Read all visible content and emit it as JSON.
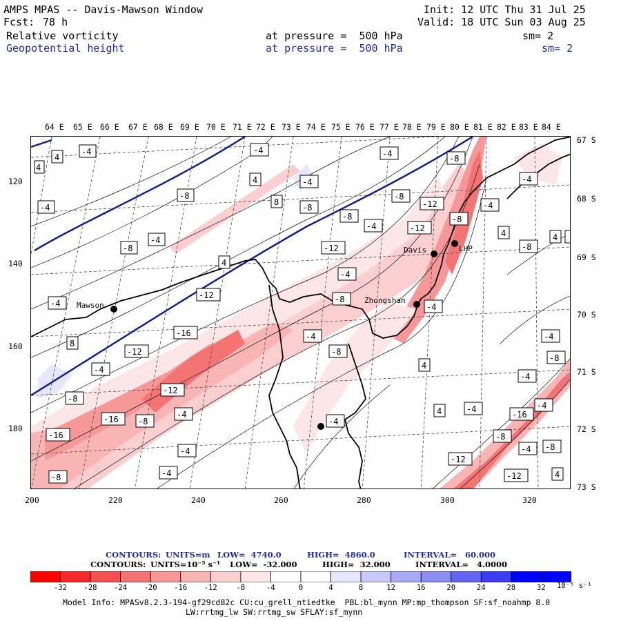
{
  "header": {
    "title": "AMPS MPAS -- Davis-Mawson Window",
    "forecast_label": "Fcst:",
    "forecast_hours": "78 h",
    "init": "Init: 12 UTC Thu 31 Jul 25",
    "valid": "Valid: 18 UTC Sun 03 Aug 25",
    "field1": "Relative vorticity",
    "field1_pressure": "at pressure =  500 hPa",
    "field1_sm": "sm= 2",
    "field2": "Geopotential height",
    "field2_pressure": "at pressure =  500 hPa",
    "field2_sm": "sm= 2"
  },
  "map": {
    "lon_labels": [
      "64 E",
      "65 E",
      "66 E",
      "67 E",
      "68 E",
      "69 E",
      "70 E",
      "71 E",
      "72 E",
      "73 E",
      "74 E",
      "75 E",
      "76 E",
      "77 E",
      "78 E",
      "79 E",
      "80 E",
      "81 E",
      "82 E",
      "83 E",
      "84 E"
    ],
    "lat_labels": [
      "67 S",
      "68 S",
      "69 S",
      "70 S",
      "71 S",
      "72 S",
      "73 S"
    ],
    "y_ticks": [
      "120",
      "140",
      "160",
      "180"
    ],
    "x_ticks": [
      "200",
      "220",
      "240",
      "260",
      "280",
      "300",
      "320"
    ],
    "stations": [
      "Mawson",
      "Davis",
      "Zhongshan",
      "LHP"
    ],
    "height_contour_color": "#10208a",
    "vorticity_labels": [
      "-4",
      "4",
      "-8",
      "8",
      "-12",
      "-16"
    ]
  },
  "contours_info": {
    "line1_contours": "CONTOURS:",
    "line1_units": "UNITS=m",
    "line1_low": "LOW=  4740.0",
    "line1_high": "HIGH=  4860.0",
    "line1_interval": "INTERVAL=   60.000",
    "line2_contours": "CONTOURS:",
    "line2_units": "UNITS=10⁻⁵ s⁻¹",
    "line2_low": "LOW=  -32.000",
    "line2_high": "HIGH=  32.000",
    "line2_interval": "INTERVAL=   4.0000"
  },
  "colorbar": {
    "labels": [
      "-32",
      "-28",
      "-24",
      "-20",
      "-16",
      "-12",
      "-8",
      "-4",
      "0",
      "4",
      "8",
      "12",
      "16",
      "20",
      "24",
      "28",
      "32"
    ],
    "unit": "10⁻⁵ s⁻¹",
    "colors": [
      "#ff0000",
      "#f7282c",
      "#f45050",
      "#f47474",
      "#f79797",
      "#f9b4b4",
      "#fbcfcf",
      "#fde6e6",
      "#ffffff",
      "#ffffff",
      "#e6e6ff",
      "#c8c8fa",
      "#aaaaf7",
      "#8c8cf5",
      "#6464f5",
      "#3c3cf5",
      "#0000ff"
    ]
  },
  "model_info": {
    "line1": "Model Info: MPASv8.2.3-194-gf29cd82c CU:cu_grell_ntiedtke  PBL:bl_mynn MP:mp_thompson SF:sf_noahmp 8.0",
    "line2": "LW:rrtmg_lw SW:rrtmg_sw SFLAY:sf_mynn"
  }
}
